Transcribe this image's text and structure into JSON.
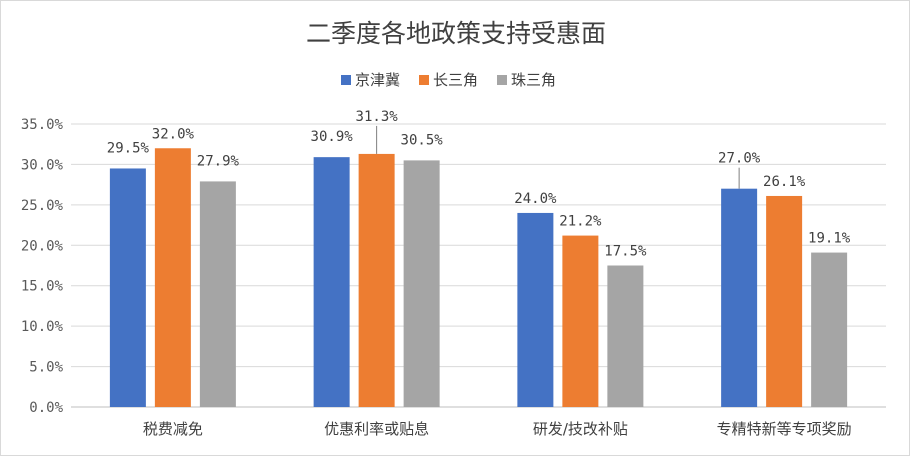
{
  "chart_data": {
    "type": "bar",
    "title": "二季度各地政策支持受惠面",
    "categories": [
      "税费减免",
      "优惠利率或贴息",
      "研发/技改补贴",
      "专精特新等专项奖励"
    ],
    "series": [
      {
        "name": "京津冀",
        "values": [
          29.5,
          30.9,
          24.0,
          27.0
        ],
        "labels": [
          "29.5%",
          "30.9%",
          "24.0%",
          "27.0%"
        ],
        "color": "#4472c4"
      },
      {
        "name": "长三角",
        "values": [
          32.0,
          31.3,
          21.2,
          26.1
        ],
        "labels": [
          "32.0%",
          "31.3%",
          "21.2%",
          "26.1%"
        ],
        "color": "#ed7d31"
      },
      {
        "name": "珠三角",
        "values": [
          27.9,
          30.5,
          17.5,
          19.1
        ],
        "labels": [
          "27.9%",
          "30.5%",
          "17.5%",
          "19.1%"
        ],
        "color": "#a5a5a5"
      }
    ],
    "ylim": [
      0,
      35
    ],
    "yticks": [
      0,
      5,
      10,
      15,
      20,
      25,
      30,
      35
    ],
    "ytick_labels": [
      "0.0%",
      "5.0%",
      "10.0%",
      "15.0%",
      "20.0%",
      "25.0%",
      "30.0%",
      "35.0%"
    ],
    "xlabel": "",
    "ylabel": "",
    "grid": true,
    "legend_position": "top"
  }
}
